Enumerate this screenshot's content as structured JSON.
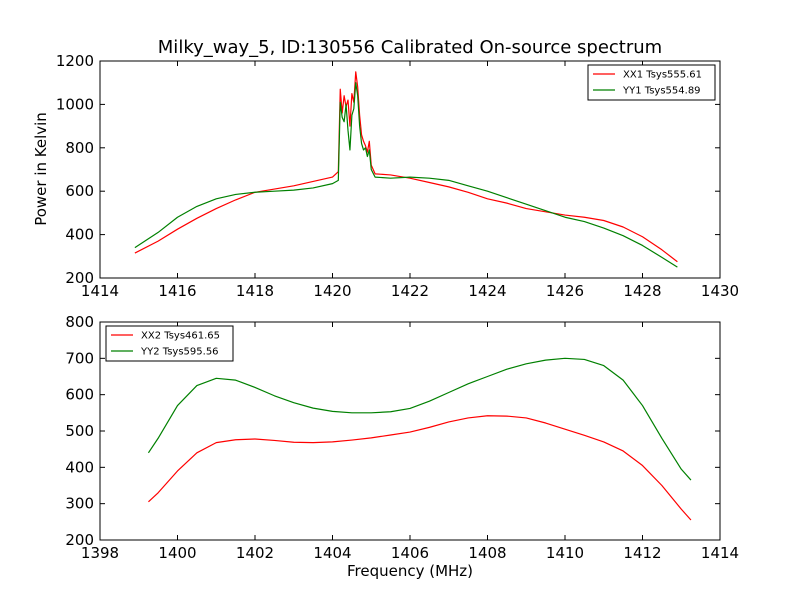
{
  "figure": {
    "title": "Milky_way_5, ID:130556 Calibrated On-source spectrum",
    "ylabel": "Power in Kelvin",
    "xlabel": "Frequency (MHz)"
  },
  "chart_data": [
    {
      "type": "line",
      "title": "Milky_way_5, ID:130556 Calibrated On-source spectrum",
      "xlabel": "",
      "ylabel": "Power in Kelvin",
      "xlim": [
        1414,
        1430
      ],
      "ylim": [
        200,
        1200
      ],
      "xticks": [
        1414,
        1416,
        1418,
        1420,
        1422,
        1424,
        1426,
        1428,
        1430
      ],
      "yticks": [
        200,
        400,
        600,
        800,
        1000,
        1200
      ],
      "grid": false,
      "legend_position": "top-right",
      "series": [
        {
          "name": "XX1 Tsys555.61",
          "color": "#ff0000",
          "points": [
            [
              1414.9,
              315
            ],
            [
              1415.5,
              370
            ],
            [
              1416.0,
              425
            ],
            [
              1416.5,
              475
            ],
            [
              1417.0,
              520
            ],
            [
              1417.5,
              560
            ],
            [
              1418.0,
              595
            ],
            [
              1418.5,
              610
            ],
            [
              1419.0,
              625
            ],
            [
              1419.5,
              645
            ],
            [
              1420.0,
              665
            ],
            [
              1420.15,
              690
            ],
            [
              1420.2,
              1070
            ],
            [
              1420.25,
              960
            ],
            [
              1420.3,
              1040
            ],
            [
              1420.35,
              990
            ],
            [
              1420.4,
              1020
            ],
            [
              1420.45,
              900
            ],
            [
              1420.5,
              1050
            ],
            [
              1420.55,
              1010
            ],
            [
              1420.6,
              1150
            ],
            [
              1420.65,
              1080
            ],
            [
              1420.7,
              950
            ],
            [
              1420.75,
              860
            ],
            [
              1420.8,
              830
            ],
            [
              1420.85,
              810
            ],
            [
              1420.9,
              780
            ],
            [
              1420.95,
              830
            ],
            [
              1421.0,
              720
            ],
            [
              1421.1,
              680
            ],
            [
              1421.5,
              675
            ],
            [
              1422.0,
              660
            ],
            [
              1422.5,
              640
            ],
            [
              1423.0,
              620
            ],
            [
              1423.5,
              595
            ],
            [
              1424.0,
              565
            ],
            [
              1424.5,
              545
            ],
            [
              1425.0,
              520
            ],
            [
              1425.5,
              505
            ],
            [
              1426.0,
              490
            ],
            [
              1426.5,
              480
            ],
            [
              1427.0,
              465
            ],
            [
              1427.5,
              435
            ],
            [
              1428.0,
              390
            ],
            [
              1428.5,
              330
            ],
            [
              1428.9,
              275
            ]
          ]
        },
        {
          "name": "YY1 Tsys554.89",
          "color": "#008000",
          "points": [
            [
              1414.9,
              340
            ],
            [
              1415.5,
              410
            ],
            [
              1416.0,
              480
            ],
            [
              1416.5,
              530
            ],
            [
              1417.0,
              565
            ],
            [
              1417.5,
              585
            ],
            [
              1418.0,
              595
            ],
            [
              1418.5,
              600
            ],
            [
              1419.0,
              605
            ],
            [
              1419.5,
              615
            ],
            [
              1420.0,
              635
            ],
            [
              1420.15,
              650
            ],
            [
              1420.2,
              1010
            ],
            [
              1420.25,
              940
            ],
            [
              1420.3,
              920
            ],
            [
              1420.35,
              1000
            ],
            [
              1420.4,
              880
            ],
            [
              1420.45,
              790
            ],
            [
              1420.5,
              950
            ],
            [
              1420.55,
              980
            ],
            [
              1420.6,
              1100
            ],
            [
              1420.65,
              1040
            ],
            [
              1420.7,
              900
            ],
            [
              1420.75,
              820
            ],
            [
              1420.8,
              790
            ],
            [
              1420.85,
              800
            ],
            [
              1420.9,
              760
            ],
            [
              1420.95,
              790
            ],
            [
              1421.0,
              700
            ],
            [
              1421.1,
              665
            ],
            [
              1421.5,
              660
            ],
            [
              1422.0,
              665
            ],
            [
              1422.5,
              660
            ],
            [
              1423.0,
              650
            ],
            [
              1423.5,
              625
            ],
            [
              1424.0,
              600
            ],
            [
              1424.5,
              570
            ],
            [
              1425.0,
              540
            ],
            [
              1425.5,
              510
            ],
            [
              1426.0,
              480
            ],
            [
              1426.5,
              460
            ],
            [
              1427.0,
              430
            ],
            [
              1427.5,
              395
            ],
            [
              1428.0,
              350
            ],
            [
              1428.5,
              295
            ],
            [
              1428.9,
              250
            ]
          ]
        }
      ]
    },
    {
      "type": "line",
      "title": "",
      "xlabel": "Frequency (MHz)",
      "ylabel": "",
      "xlim": [
        1398,
        1414
      ],
      "ylim": [
        200,
        800
      ],
      "xticks": [
        1398,
        1400,
        1402,
        1404,
        1406,
        1408,
        1410,
        1412,
        1414
      ],
      "yticks": [
        200,
        300,
        400,
        500,
        600,
        700,
        800
      ],
      "grid": false,
      "legend_position": "top-left",
      "series": [
        {
          "name": "XX2 Tsys461.65",
          "color": "#ff0000",
          "points": [
            [
              1399.25,
              305
            ],
            [
              1399.5,
              330
            ],
            [
              1400.0,
              390
            ],
            [
              1400.5,
              440
            ],
            [
              1401.0,
              468
            ],
            [
              1401.5,
              476
            ],
            [
              1402.0,
              478
            ],
            [
              1402.5,
              474
            ],
            [
              1403.0,
              469
            ],
            [
              1403.5,
              468
            ],
            [
              1404.0,
              470
            ],
            [
              1404.5,
              475
            ],
            [
              1405.0,
              481
            ],
            [
              1405.5,
              489
            ],
            [
              1406.0,
              497
            ],
            [
              1406.5,
              510
            ],
            [
              1407.0,
              525
            ],
            [
              1407.5,
              536
            ],
            [
              1408.0,
              542
            ],
            [
              1408.5,
              541
            ],
            [
              1409.0,
              536
            ],
            [
              1409.5,
              522
            ],
            [
              1410.0,
              505
            ],
            [
              1410.5,
              488
            ],
            [
              1411.0,
              470
            ],
            [
              1411.5,
              445
            ],
            [
              1412.0,
              405
            ],
            [
              1412.5,
              350
            ],
            [
              1413.0,
              285
            ],
            [
              1413.25,
              255
            ]
          ]
        },
        {
          "name": "YY2 Tsys595.56",
          "color": "#008000",
          "points": [
            [
              1399.25,
              440
            ],
            [
              1399.5,
              480
            ],
            [
              1400.0,
              570
            ],
            [
              1400.5,
              625
            ],
            [
              1401.0,
              645
            ],
            [
              1401.5,
              640
            ],
            [
              1402.0,
              620
            ],
            [
              1402.5,
              597
            ],
            [
              1403.0,
              578
            ],
            [
              1403.5,
              563
            ],
            [
              1404.0,
              554
            ],
            [
              1404.5,
              550
            ],
            [
              1405.0,
              550
            ],
            [
              1405.5,
              553
            ],
            [
              1406.0,
              562
            ],
            [
              1406.5,
              582
            ],
            [
              1407.0,
              606
            ],
            [
              1407.5,
              630
            ],
            [
              1408.0,
              650
            ],
            [
              1408.5,
              670
            ],
            [
              1409.0,
              685
            ],
            [
              1409.5,
              695
            ],
            [
              1410.0,
              700
            ],
            [
              1410.5,
              697
            ],
            [
              1411.0,
              680
            ],
            [
              1411.5,
              640
            ],
            [
              1412.0,
              570
            ],
            [
              1412.5,
              480
            ],
            [
              1413.0,
              395
            ],
            [
              1413.25,
              365
            ]
          ]
        }
      ]
    }
  ]
}
